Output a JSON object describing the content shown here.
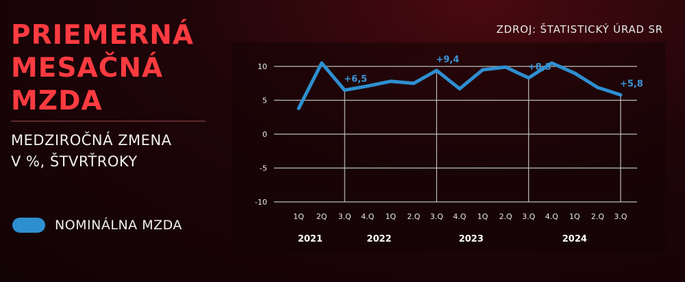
{
  "title_lines": [
    "PRIEMERNÁ",
    "MESAČNÁ",
    "MZDA"
  ],
  "subtitle_lines": [
    "MEDZIROČNÁ ZMENA",
    "V %, ŠTVRŤROKY"
  ],
  "source": "ZDROJ: ŠTATISTICKÝ ÚRAD SR",
  "legend": {
    "label": "NOMINÁLNA MZDA",
    "color": "#2e8fd0"
  },
  "colors": {
    "title": "#ff3b40",
    "line": "#2e8fd0",
    "data_label": "#3b95d6"
  },
  "chart_data": {
    "type": "line",
    "categories": [
      "1Q",
      "2Q",
      "3.Q",
      "4.Q",
      "1Q",
      "2.Q",
      "3.Q",
      "4.Q",
      "1Q",
      "2.Q",
      "3.Q",
      "4.Q",
      "1Q",
      "2.Q",
      "3.Q"
    ],
    "years": [
      {
        "label": "2021",
        "start": 0,
        "end": 1
      },
      {
        "label": "2022",
        "start": 2,
        "end": 5
      },
      {
        "label": "2023",
        "start": 6,
        "end": 9
      },
      {
        "label": "2024",
        "start": 10,
        "end": 14
      }
    ],
    "series": [
      {
        "name": "NOMINÁLNA MZDA",
        "values": [
          3.8,
          10.5,
          6.5,
          7.1,
          7.8,
          7.5,
          9.4,
          6.7,
          9.5,
          9.9,
          8.3,
          10.5,
          9.0,
          6.9,
          5.8
        ]
      }
    ],
    "data_labels": [
      {
        "index": 2,
        "text": "+6,5"
      },
      {
        "index": 6,
        "text": "+9,4"
      },
      {
        "index": 10,
        "text": "+8,3"
      },
      {
        "index": 14,
        "text": "+5,8"
      }
    ],
    "y_ticks": [
      10,
      5,
      0,
      -5,
      -10
    ],
    "ylim": [
      -10,
      10
    ],
    "vertical_guides": [
      2,
      6,
      10,
      14
    ]
  }
}
